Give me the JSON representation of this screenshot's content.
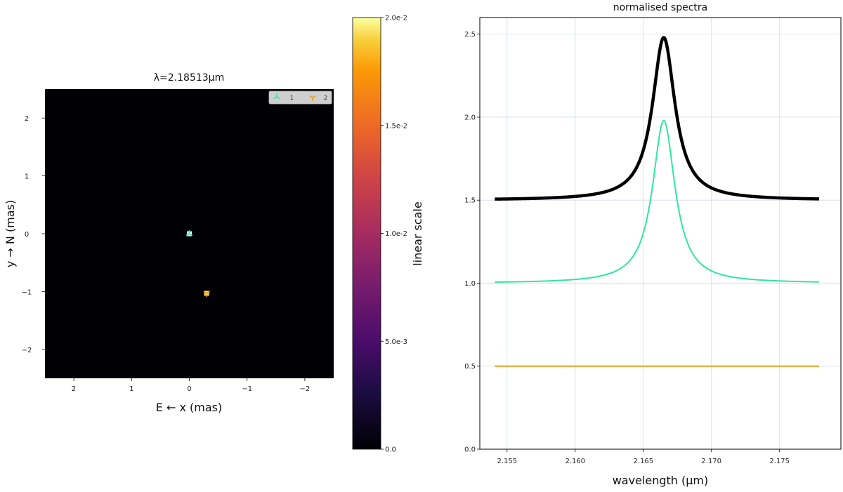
{
  "chart_data": [
    {
      "type": "heatmap",
      "title": "λ=2.18513μm",
      "xlabel": "E ← x (mas)",
      "ylabel": "y → N (mas)",
      "xlim": [
        2.5,
        -2.5
      ],
      "ylim": [
        -2.5,
        2.5
      ],
      "xticks": [
        2,
        1,
        0,
        -1,
        -2
      ],
      "xtick_labels": [
        "2",
        "1",
        "0",
        "−1",
        "−2"
      ],
      "yticks": [
        2,
        1,
        0,
        -1,
        -2
      ],
      "ytick_labels": [
        "2",
        "1",
        "0",
        "−1",
        "−2"
      ],
      "background": "#000004",
      "sources": [
        {
          "name": "1",
          "x": 0.0,
          "y": 0.0,
          "marker": "tri_down",
          "color": "#2ee6a0"
        },
        {
          "name": "2",
          "x": -0.3,
          "y": -1.03,
          "marker": "tri_up",
          "color": "#e8a020"
        }
      ],
      "legend": [
        "1",
        "2"
      ],
      "legend_placement": "top-right",
      "colorbar": {
        "label": "linear scale",
        "min": 0,
        "max": 0.02,
        "ticks": [
          0,
          0.005,
          0.01,
          0.015,
          0.02
        ],
        "tick_labels": [
          "0.0",
          "5.0e-3",
          "1.0e-2",
          "1.5e-2",
          "2.0e-2"
        ],
        "colormap": "inferno"
      }
    },
    {
      "type": "line",
      "title": "normalised spectra",
      "xlabel": "wavelength (μm)",
      "ylabel": "",
      "xlim": [
        2.153,
        2.1795
      ],
      "ylim": [
        0,
        2.6
      ],
      "xticks": [
        2.155,
        2.16,
        2.165,
        2.17,
        2.175
      ],
      "xtick_labels": [
        "2.155",
        "2.160",
        "2.165",
        "2.170",
        "2.175"
      ],
      "yticks": [
        0,
        0.5,
        1.0,
        1.5,
        2.0,
        2.5
      ],
      "ytick_labels": [
        "0.0",
        "0.5",
        "1.0",
        "1.5",
        "2.0",
        "2.5"
      ],
      "grid": true,
      "line_profile": {
        "x_start": 2.1541,
        "x_end": 2.1779,
        "center": 2.1665,
        "width": 0.001
      },
      "series": [
        {
          "color": "#000000",
          "continuum": 1.5,
          "amplitude": 0.98
        },
        {
          "color": "#2ee6a0",
          "continuum": 1.0,
          "amplitude": 0.98
        },
        {
          "color": "#e8a020",
          "continuum": 0.5,
          "amplitude": 0.0
        }
      ]
    }
  ]
}
